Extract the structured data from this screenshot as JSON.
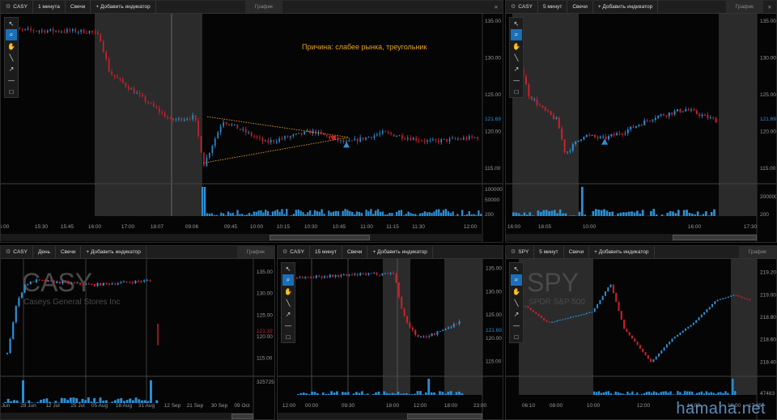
{
  "panels": [
    {
      "symbol": "CASY",
      "interval": "1 минута",
      "type": "Свечи",
      "add": "+ Добавить индикатор",
      "tab": "График",
      "annotation": "Причина: слабее рынка, треугольник",
      "yticks": [
        "135.00",
        "130.00",
        "125.00",
        "121.69",
        "120.00",
        "115.00"
      ],
      "vticks": [
        "100000",
        "50000",
        "200"
      ],
      "xticks": [
        "5:00",
        "15:30",
        "15:45",
        "16:00",
        "17:00",
        "18:07",
        "09:06",
        "09:45",
        "10:00",
        "10:15",
        "10:30",
        "10:45",
        "11:00",
        "11:15",
        "11:30",
        "12:00"
      ]
    },
    {
      "symbol": "CASY",
      "interval": "5 минут",
      "type": "Свечи",
      "add": "+ Добавить индикатор",
      "tab": "График",
      "yticks": [
        "135.00",
        "130.00",
        "125.00",
        "121.69",
        "120.00",
        "115.00"
      ],
      "vticks": [
        "200000",
        "200"
      ],
      "xticks": [
        "16:00",
        "18:05",
        "10:00",
        "16:00",
        "17:30"
      ]
    },
    {
      "symbol": "CASY",
      "interval": "День",
      "type": "Свечи",
      "add": "+ Добавить индикатор",
      "tab": "График",
      "big": "CASY",
      "company": "Caseys General Stores Inc",
      "yticks": [
        "135.00",
        "130.00",
        "125.00",
        "121.32",
        "120.00",
        "115.00"
      ],
      "vticks": [
        "3257253"
      ],
      "xticks": [
        "Jun",
        "28 Jun",
        "12 Jul",
        "25 Jul",
        "05 Aug",
        "18 Aug",
        "31 Aug",
        "12 Sep",
        "21 Sep",
        "30 Sep",
        "09 Oct"
      ]
    },
    {
      "symbol": "CASY",
      "interval": "15 минут",
      "type": "Свечи",
      "add": "+ Добавить индикатор",
      "yticks": [
        "135.00",
        "130.00",
        "125.00",
        "121.69",
        "120.00",
        "115.00"
      ],
      "xticks": [
        "12:00",
        "00:00",
        "09:30",
        "18:00",
        "12:00",
        "18:00",
        "23:00"
      ]
    },
    {
      "symbol": "SPY",
      "interval": "5 минут",
      "type": "Свечи",
      "add": "+ Добавить индикатор",
      "tab": "График",
      "big": "SPY",
      "company": "SPDR S&P 500",
      "yticks": [
        "219.20",
        "219.00",
        "218.80",
        "218.60",
        "218.40"
      ],
      "vticks": [
        "47483"
      ],
      "xticks": [
        "06:10",
        "08:00",
        "10:00",
        "12:00",
        "14:00",
        "16:00",
        "17:05"
      ]
    }
  ],
  "tools": [
    "pointer-icon",
    "zoom-icon",
    "hand-icon",
    "line-icon",
    "arrow-icon",
    "hline-icon",
    "rect-icon"
  ],
  "watermark": "hamaha.net",
  "colors": {
    "up": "#2a8fd6",
    "down": "#d0202a",
    "grid": "#1c1c1c",
    "shade": "#2b2b2b",
    "annotation": "#e8a020"
  }
}
